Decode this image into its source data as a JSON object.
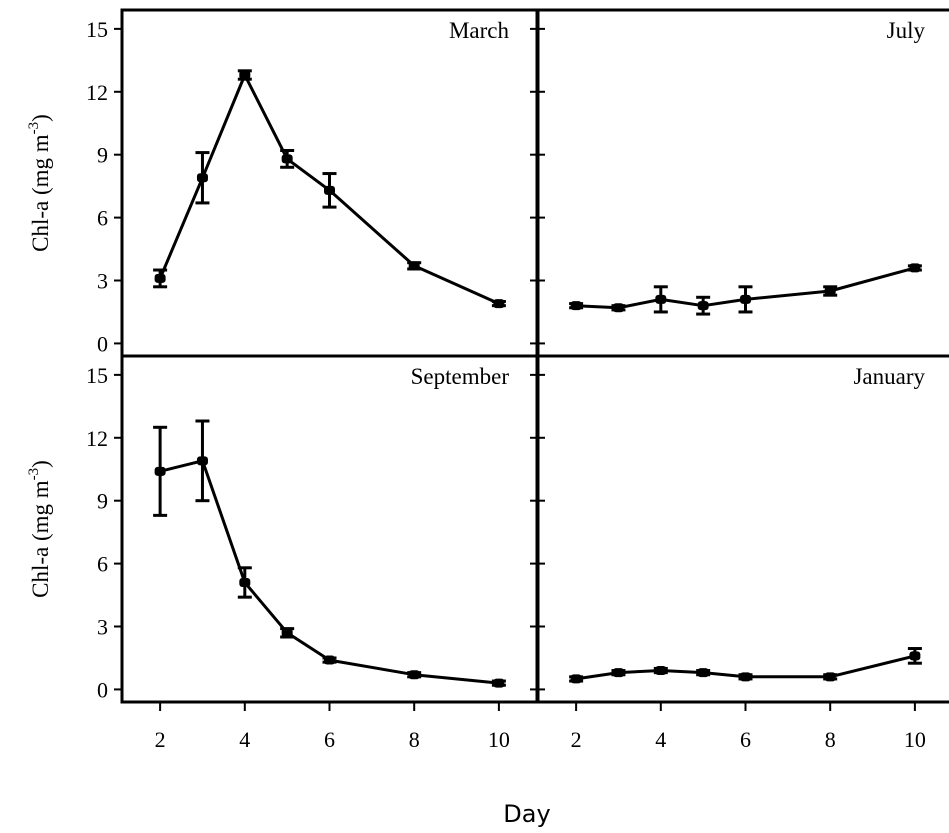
{
  "chart_data": {
    "type": "line",
    "x_label": "Day",
    "y_label": {
      "main": "Chl-a (mg m",
      "superscript": "-3",
      "close": ")"
    },
    "x_ticks": [
      2,
      4,
      6,
      8,
      10
    ],
    "y_ticks": [
      0,
      3,
      6,
      9,
      12,
      15
    ],
    "x_range": [
      1.1,
      10.9
    ],
    "y_range": [
      -0.6,
      15.9
    ],
    "grid": false,
    "legend": "none",
    "colors": {
      "line": "#000000",
      "marker": "#000000"
    },
    "panels": [
      {
        "label": "March",
        "x": [
          2,
          3,
          4,
          5,
          6,
          8,
          10
        ],
        "y": [
          3.1,
          7.9,
          12.8,
          8.8,
          7.3,
          3.7,
          1.9
        ],
        "error": [
          0.4,
          1.2,
          0.2,
          0.4,
          0.8,
          0.15,
          0.1
        ]
      },
      {
        "label": "July",
        "x": [
          2,
          3,
          4,
          5,
          6,
          8,
          10
        ],
        "y": [
          1.8,
          1.7,
          2.1,
          1.8,
          2.1,
          2.5,
          3.6
        ],
        "error": [
          0.1,
          0.1,
          0.6,
          0.4,
          0.6,
          0.2,
          0.1
        ]
      },
      {
        "label": "September",
        "x": [
          2,
          3,
          4,
          5,
          6,
          8,
          10
        ],
        "y": [
          10.4,
          10.9,
          5.1,
          2.7,
          1.4,
          0.7,
          0.3
        ],
        "error": [
          2.1,
          1.9,
          0.7,
          0.2,
          0.1,
          0.1,
          0.1
        ]
      },
      {
        "label": "January",
        "x": [
          2,
          3,
          4,
          5,
          6,
          8,
          10
        ],
        "y": [
          0.5,
          0.8,
          0.9,
          0.8,
          0.6,
          0.6,
          1.6
        ],
        "error": [
          0.1,
          0.1,
          0.1,
          0.1,
          0.1,
          0.1,
          0.35
        ]
      }
    ]
  }
}
